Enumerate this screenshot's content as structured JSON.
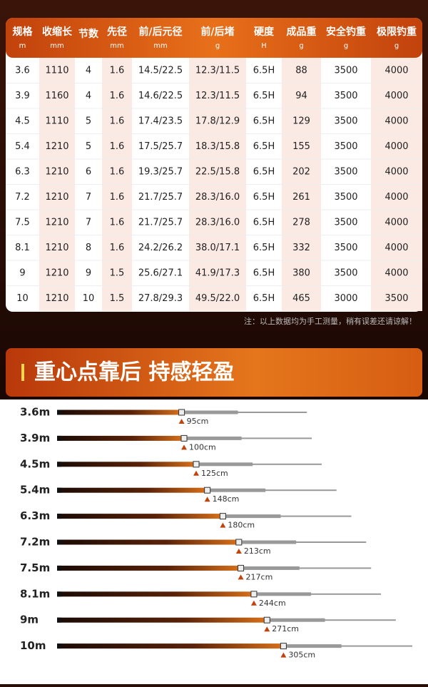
{
  "table": {
    "headers": [
      [
        "规格",
        "m"
      ],
      [
        "收缩长",
        "mm"
      ],
      [
        "节数",
        ""
      ],
      [
        "先径",
        "mm"
      ],
      [
        "前/后元径",
        "mm"
      ],
      [
        "前/后堵",
        "g"
      ],
      [
        "硬度",
        "H"
      ],
      [
        "成品重",
        "g"
      ],
      [
        "安全钓重",
        "g"
      ],
      [
        "极限钓重",
        "g"
      ]
    ],
    "rows": [
      [
        "3.6",
        "1110",
        "4",
        "1.6",
        "14.5/22.5",
        "12.3/11.5",
        "6.5H",
        "88",
        "3500",
        "4000"
      ],
      [
        "3.9",
        "1160",
        "4",
        "1.6",
        "14.6/22.5",
        "12.3/11.5",
        "6.5H",
        "94",
        "3500",
        "4000"
      ],
      [
        "4.5",
        "1110",
        "5",
        "1.6",
        "17.4/23.5",
        "17.8/12.9",
        "6.5H",
        "129",
        "3500",
        "4000"
      ],
      [
        "5.4",
        "1210",
        "5",
        "1.6",
        "17.5/25.7",
        "18.3/15.8",
        "6.5H",
        "155",
        "3500",
        "4000"
      ],
      [
        "6.3",
        "1210",
        "6",
        "1.6",
        "19.3/25.7",
        "22.5/15.8",
        "6.5H",
        "202",
        "3500",
        "4000"
      ],
      [
        "7.2",
        "1210",
        "7",
        "1.6",
        "21.7/25.7",
        "28.3/16.0",
        "6.5H",
        "261",
        "3500",
        "4000"
      ],
      [
        "7.5",
        "1210",
        "7",
        "1.6",
        "21.7/25.7",
        "28.3/16.0",
        "6.5H",
        "278",
        "3500",
        "4000"
      ],
      [
        "8.1",
        "1210",
        "8",
        "1.6",
        "24.2/26.2",
        "38.0/17.1",
        "6.5H",
        "332",
        "3500",
        "4000"
      ],
      [
        "9",
        "1210",
        "9",
        "1.5",
        "25.6/27.1",
        "41.9/17.3",
        "6.5H",
        "380",
        "3500",
        "4000"
      ],
      [
        "10",
        "1210",
        "10",
        "1.5",
        "27.8/29.3",
        "49.5/22.0",
        "6.5H",
        "465",
        "3000",
        "3500"
      ]
    ],
    "note": "注：以上数据均为手工测量，稍有误差还请谅解！"
  },
  "section": {
    "title": "重心点靠后 持感轻盈",
    "rods": [
      {
        "label": "3.6m",
        "balance": "95cm"
      },
      {
        "label": "3.9m",
        "balance": "100cm"
      },
      {
        "label": "4.5m",
        "balance": "125cm"
      },
      {
        "label": "5.4m",
        "balance": "148cm"
      },
      {
        "label": "6.3m",
        "balance": "180cm"
      },
      {
        "label": "7.2m",
        "balance": "213cm"
      },
      {
        "label": "7.5m",
        "balance": "217cm"
      },
      {
        "label": "8.1m",
        "balance": "244cm"
      },
      {
        "label": "9m",
        "balance": "271cm"
      },
      {
        "label": "10m",
        "balance": "305cm"
      }
    ]
  }
}
